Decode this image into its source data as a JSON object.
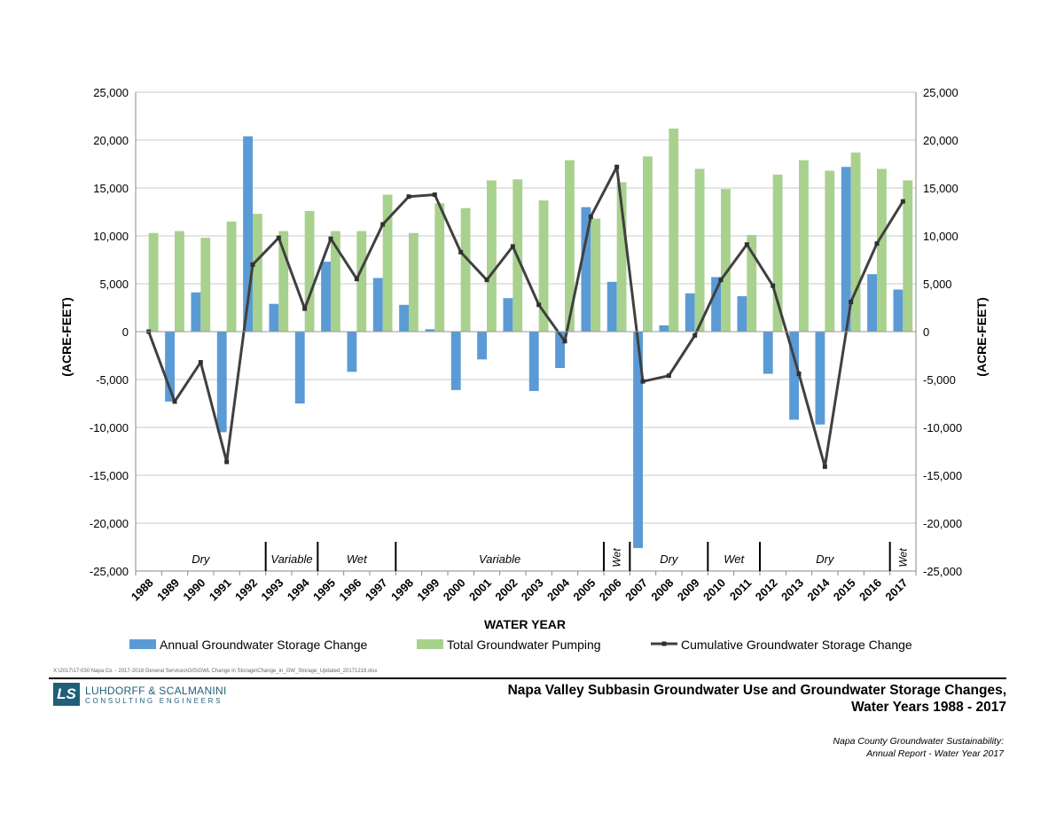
{
  "chart_data": {
    "type": "bar",
    "xlabel": "WATER YEAR",
    "ylabel_left": "(ACRE-FEET)",
    "ylabel_right": "(ACRE-FEET)",
    "ylim": [
      -25000,
      25000
    ],
    "yticks": [
      -25000,
      -20000,
      -15000,
      -10000,
      -5000,
      0,
      5000,
      10000,
      15000,
      20000,
      25000
    ],
    "ytick_labels": [
      "-25,000",
      "-20,000",
      "-15,000",
      "-10,000",
      "-5,000",
      "0",
      "5,000",
      "10,000",
      "15,000",
      "20,000",
      "25,000"
    ],
    "grid": true,
    "legend_position": "bottom",
    "categories": [
      "1988",
      "1989",
      "1990",
      "1991",
      "1992",
      "1993",
      "1994",
      "1995",
      "1996",
      "1997",
      "1998",
      "1999",
      "2000",
      "2001",
      "2002",
      "2003",
      "2004",
      "2005",
      "2006",
      "2007",
      "2008",
      "2009",
      "2010",
      "2011",
      "2012",
      "2013",
      "2014",
      "2015",
      "2016",
      "2017"
    ],
    "series": [
      {
        "name": "Annual Groundwater Storage Change",
        "kind": "bar",
        "color": "#5b9bd5",
        "values": [
          0,
          -7300,
          4100,
          -10500,
          20400,
          2900,
          -7500,
          7300,
          -4200,
          5600,
          2800,
          250,
          -6100,
          -2900,
          3500,
          -6200,
          -3800,
          13000,
          5200,
          -22600,
          650,
          4000,
          5700,
          3700,
          -4400,
          -9200,
          -9700,
          17200,
          6000,
          4400
        ]
      },
      {
        "name": "Total Groundwater Pumping",
        "kind": "bar",
        "color": "#a9d18e",
        "values": [
          10300,
          10500,
          9800,
          11500,
          12300,
          10500,
          12600,
          10500,
          10500,
          14300,
          10300,
          13400,
          12900,
          15800,
          15900,
          13700,
          17900,
          11800,
          15600,
          18300,
          21200,
          17000,
          14900,
          10100,
          16400,
          17900,
          16800,
          18700,
          17000,
          15800
        ]
      },
      {
        "name": "Cumulative Groundwater Storage Change",
        "kind": "line",
        "color": "#404040",
        "values": [
          0,
          -7300,
          -3200,
          -13600,
          7000,
          9800,
          2400,
          9700,
          5500,
          11200,
          14100,
          14300,
          8300,
          5400,
          8900,
          2800,
          -1000,
          12000,
          17200,
          -5200,
          -4600,
          -400,
          5400,
          9100,
          4800,
          -4400,
          -14100,
          3100,
          9200,
          13600
        ]
      }
    ],
    "period_bands": [
      {
        "label": "Dry",
        "start": "1988",
        "end": "1992",
        "rotated": false
      },
      {
        "label": "Variable",
        "start": "1993",
        "end": "1994",
        "rotated": false
      },
      {
        "label": "Wet",
        "start": "1995",
        "end": "1997",
        "rotated": false
      },
      {
        "label": "Variable",
        "start": "1998",
        "end": "2005",
        "rotated": false
      },
      {
        "label": "Wet",
        "start": "2006",
        "end": "2006",
        "rotated": true
      },
      {
        "label": "Dry",
        "start": "2007",
        "end": "2009",
        "rotated": false
      },
      {
        "label": "Wet",
        "start": "2010",
        "end": "2011",
        "rotated": false
      },
      {
        "label": "Dry",
        "start": "2012",
        "end": "2016",
        "rotated": false
      },
      {
        "label": "Wet",
        "start": "2017",
        "end": "2017",
        "rotated": true
      }
    ]
  },
  "footer": {
    "file_path": "X:\\2017\\17-030 Napa Co. - 2017-2018 General Services\\GIS\\GWL Change in Storage\\Change_in_GW_Storage_Updated_20171218.xlsx",
    "logo_letters": "LS",
    "logo_name": "LUHDORFF & SCALMANINI",
    "logo_subtitle": "CONSULTING ENGINEERS",
    "title_line1": "Napa Valley Subbasin Groundwater Use and Groundwater Storage Changes,",
    "title_line2": "Water Years 1988 - 2017",
    "subtitle_line1": "Napa County Groundwater Sustainability:",
    "subtitle_line2": "Annual Report - Water Year 2017"
  }
}
